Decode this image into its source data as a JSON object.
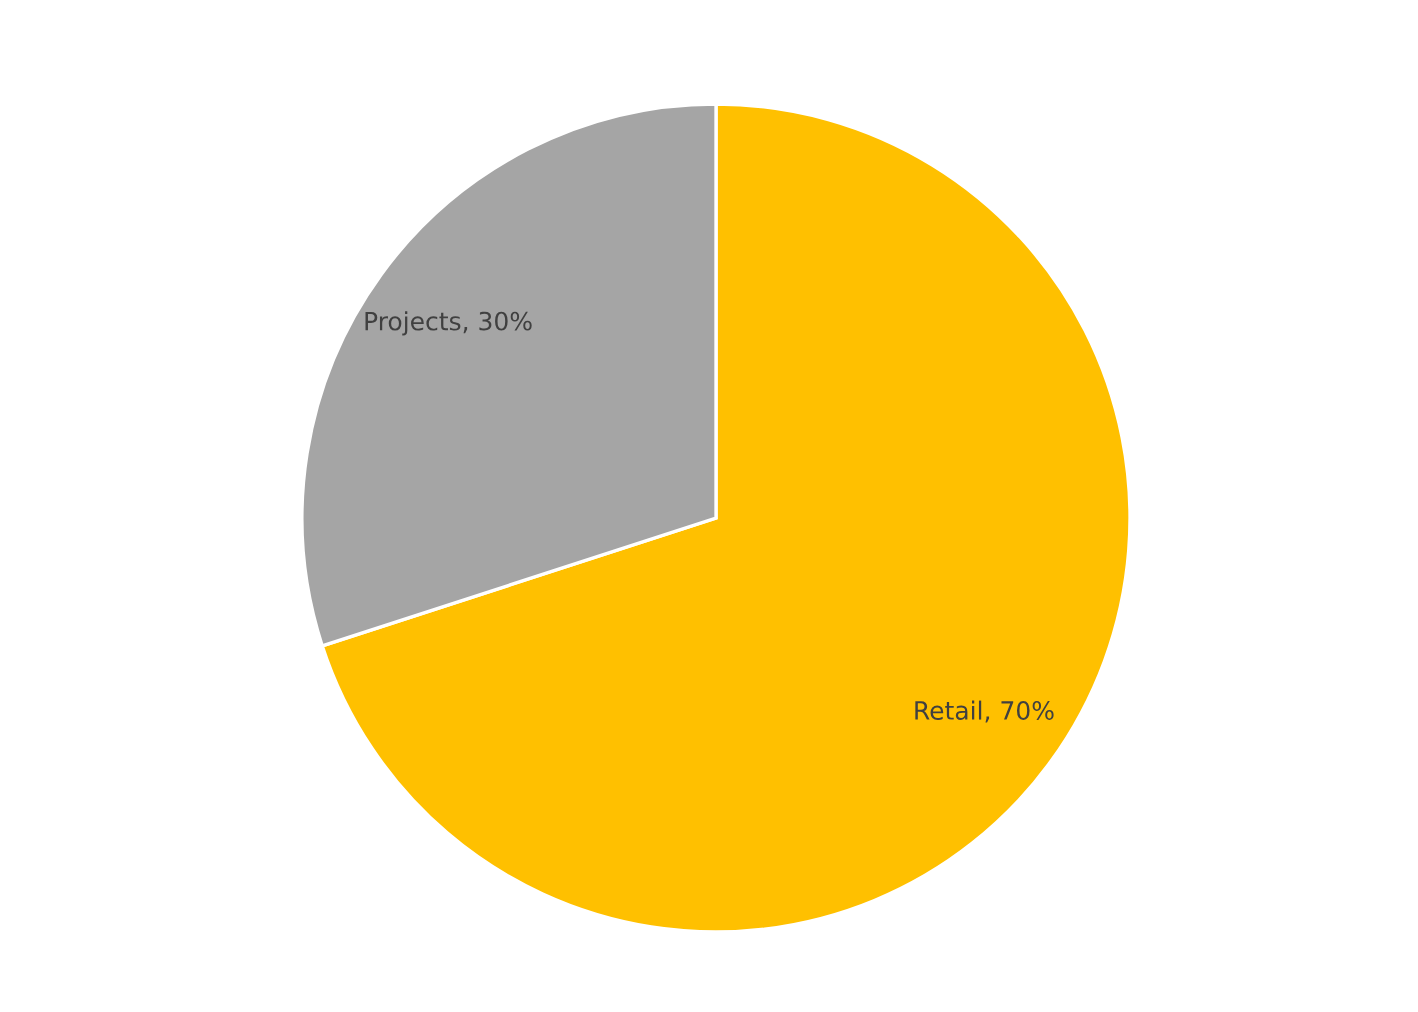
{
  "chart_data": {
    "type": "pie",
    "categories": [
      "Retail",
      "Projects"
    ],
    "values": [
      70,
      30
    ],
    "colors": [
      "#ffc000",
      "#a5a5a5"
    ],
    "value_labels": [
      "70%",
      "30%"
    ],
    "legend": false
  }
}
